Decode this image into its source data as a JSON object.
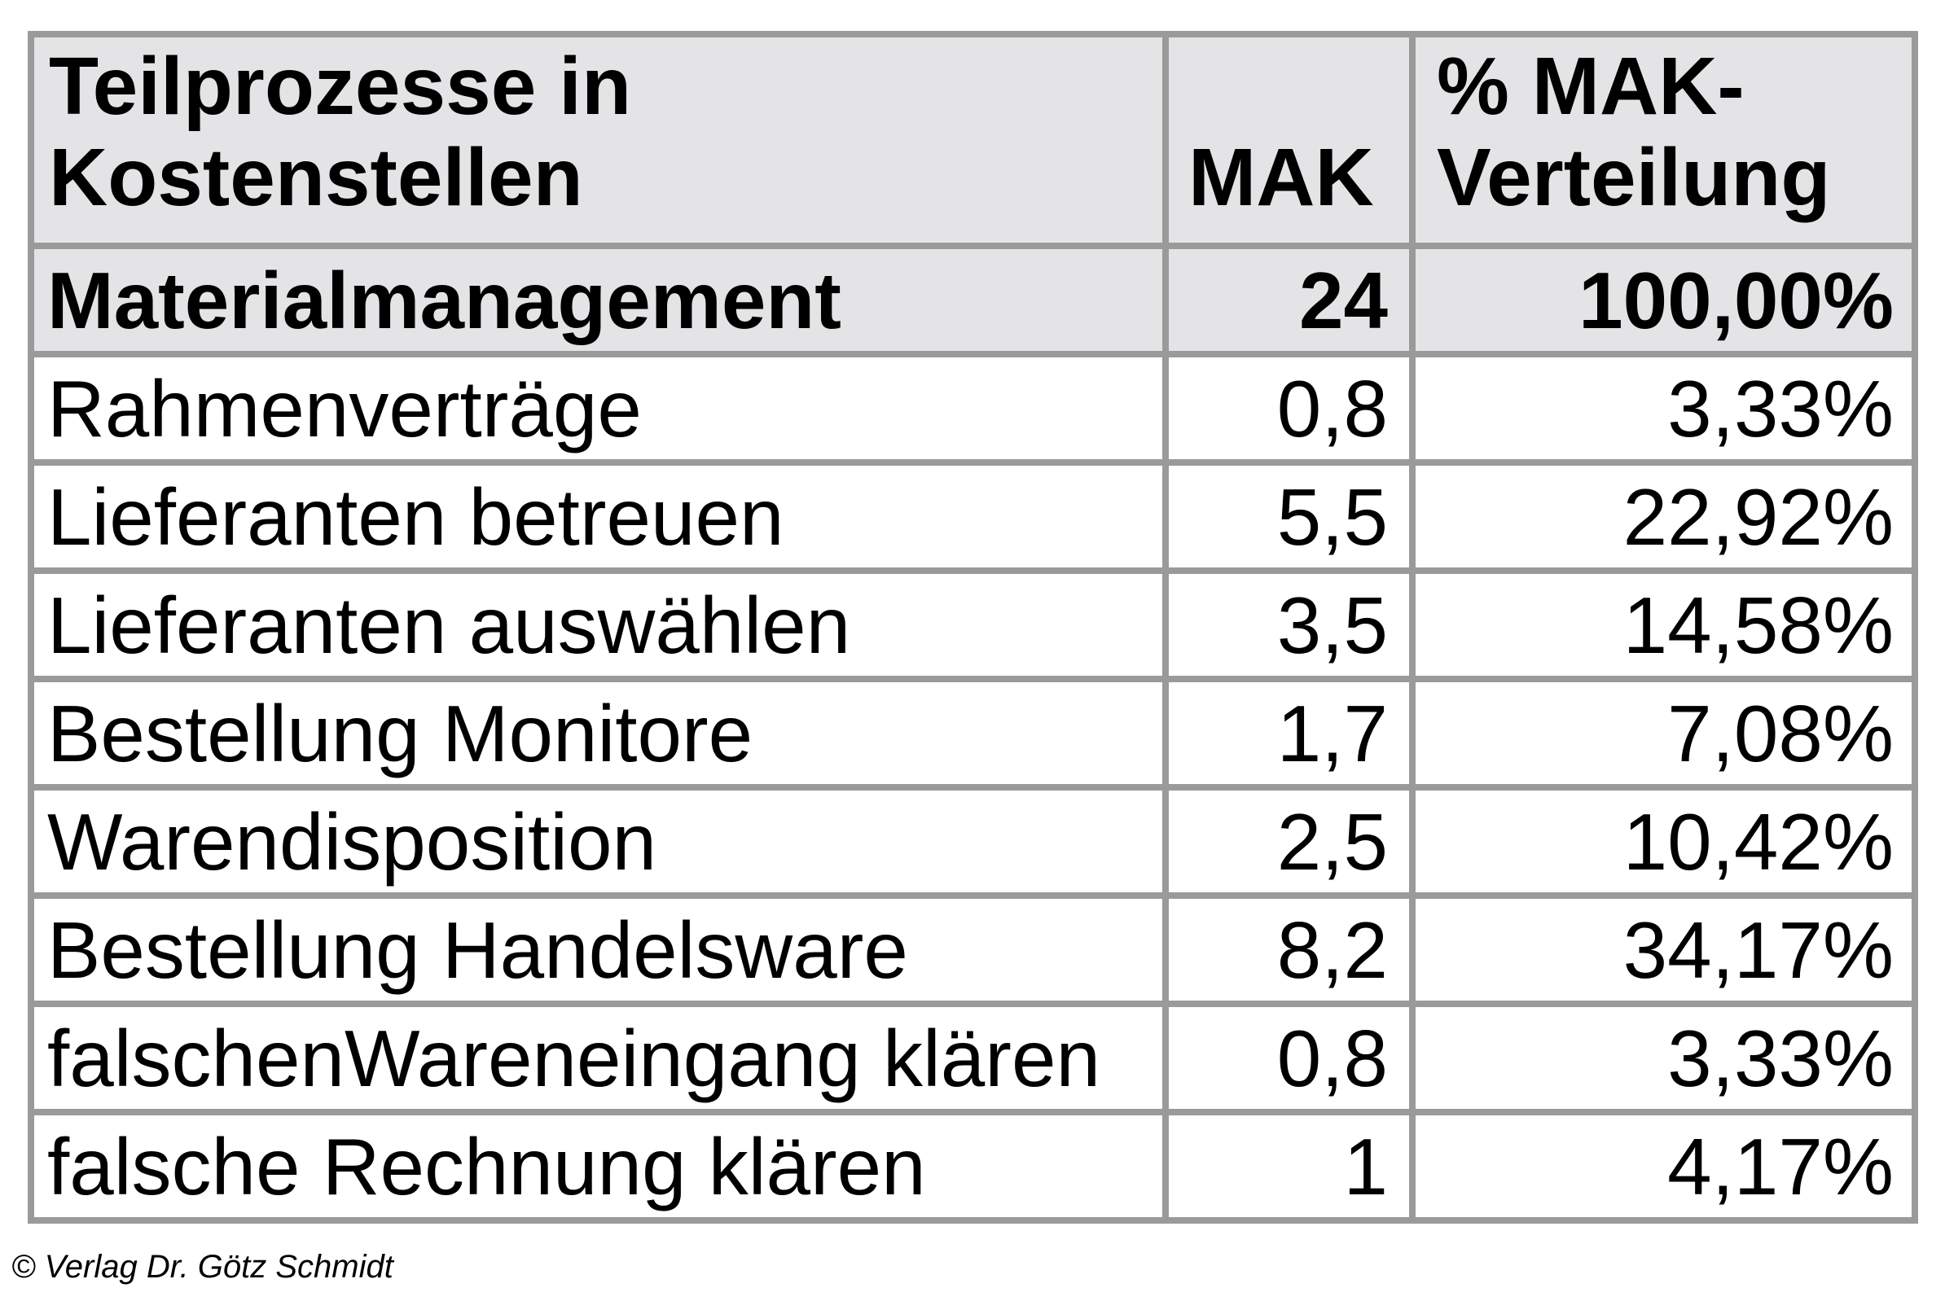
{
  "chart_data": {
    "type": "table",
    "columns": [
      "Teilprozesse in Kostenstellen",
      "MAK",
      "% MAK-Verteilung"
    ],
    "rows": [
      [
        "Materialmanagement",
        "24",
        "100,00%"
      ],
      [
        "Rahmenverträge",
        "0,8",
        "3,33%"
      ],
      [
        "Lieferanten betreuen",
        "5,5",
        "22,92%"
      ],
      [
        "Lieferanten auswählen",
        "3,5",
        "14,58%"
      ],
      [
        "Bestellung Monitore",
        "1,7",
        "7,08%"
      ],
      [
        "Warendisposition",
        "2,5",
        "10,42%"
      ],
      [
        "Bestellung Handelsware",
        "8,2",
        "34,17%"
      ],
      [
        "falschenWareneingang klären",
        "0,8",
        "3,33%"
      ],
      [
        "falsche Rechnung klären",
        "1",
        "4,17%"
      ]
    ],
    "notes": "Row 'Materialmanagement' is the bold summary row; MAK values use German decimal commas"
  },
  "table": {
    "header": {
      "process": "Teilprozesse in\nKostenstellen",
      "mak": "MAK",
      "pct": "% MAK-\nVerteilung"
    },
    "rows": [
      {
        "label": "Materialmanagement",
        "mak": "24",
        "pct": "100,00%",
        "emphasis": true
      },
      {
        "label": "Rahmenverträge",
        "mak": "0,8",
        "pct": "3,33%",
        "emphasis": false
      },
      {
        "label": "Lieferanten betreuen",
        "mak": "5,5",
        "pct": "22,92%",
        "emphasis": false
      },
      {
        "label": "Lieferanten auswählen",
        "mak": "3,5",
        "pct": "14,58%",
        "emphasis": false
      },
      {
        "label": "Bestellung Monitore",
        "mak": "1,7",
        "pct": "7,08%",
        "emphasis": false
      },
      {
        "label": "Warendisposition",
        "mak": "2,5",
        "pct": "10,42%",
        "emphasis": false
      },
      {
        "label": "Bestellung Handelsware",
        "mak": "8,2",
        "pct": "34,17%",
        "emphasis": false
      },
      {
        "label": "falschenWareneingang klären",
        "mak": "0,8",
        "pct": "3,33%",
        "emphasis": false
      },
      {
        "label": "falsche Rechnung klären",
        "mak": "1",
        "pct": "4,17%",
        "emphasis": false
      }
    ]
  },
  "footer": {
    "credit": "© Verlag Dr. Götz Schmidt"
  },
  "colors": {
    "grid": "#9a9a9a",
    "band_bg": "#e4e4e6",
    "cell_bg": "#ffffff",
    "text": "#000000"
  }
}
